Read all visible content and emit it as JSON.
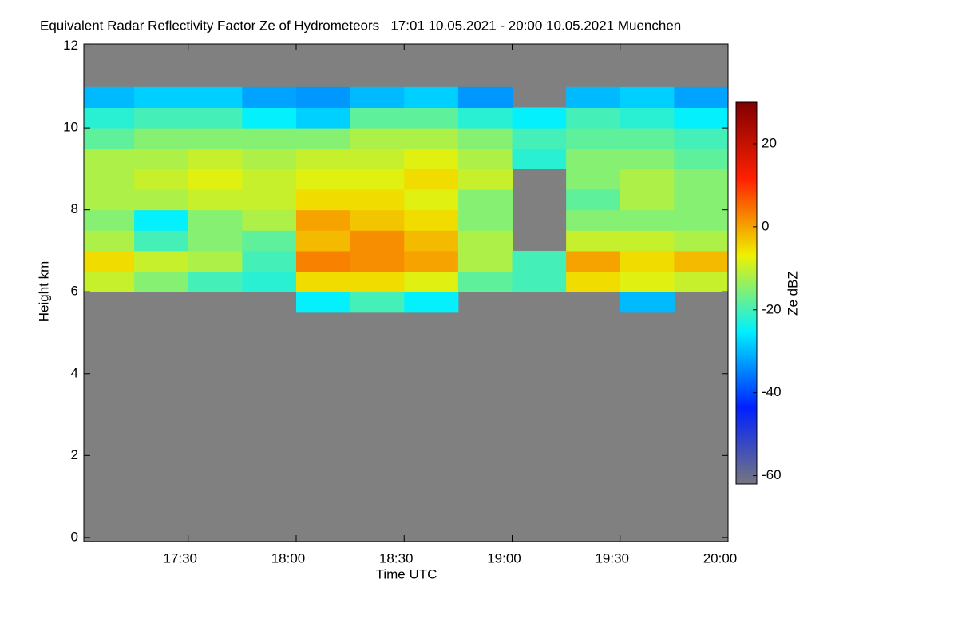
{
  "chart_data": {
    "type": "heatmap",
    "title": "Equivalent Radar Reflectivity Factor Ze of Hydrometeors   17:01 10.05.2021 - 20:00 10.05.2021 Muenchen",
    "x_label": "Time UTC",
    "y_label": "Height km",
    "colorbar_label": "Ze dBZ",
    "background": "#808080",
    "x": [
      17.125,
      17.375,
      17.625,
      17.875,
      18.125,
      18.375,
      18.625,
      18.875,
      19.125,
      19.375,
      19.625,
      19.875
    ],
    "y": [
      5.75,
      6.25,
      6.75,
      7.25,
      7.75,
      8.25,
      8.75,
      9.25,
      9.75,
      10.25,
      10.75
    ],
    "z": [
      [
        null,
        null,
        null,
        null,
        -25,
        -20,
        -25,
        null,
        null,
        null,
        -30,
        null
      ],
      [
        -10,
        -15,
        -20,
        -22,
        -5,
        -5,
        -8,
        -18,
        -20,
        -5,
        -8,
        -10
      ],
      [
        -5,
        -10,
        -12,
        -20,
        3,
        2,
        0,
        -12,
        -20,
        0,
        -5,
        -2
      ],
      [
        -12,
        -20,
        -15,
        -18,
        -2,
        2,
        -2,
        -12,
        null,
        -10,
        -10,
        -12
      ],
      [
        -15,
        -25,
        -15,
        -12,
        0,
        -3,
        -5,
        -15,
        null,
        -15,
        -15,
        -15
      ],
      [
        -12,
        -12,
        -10,
        -10,
        -5,
        -5,
        -8,
        -15,
        null,
        -18,
        -12,
        -15
      ],
      [
        -12,
        -10,
        -8,
        -10,
        -8,
        -8,
        -5,
        -10,
        null,
        -15,
        -12,
        -15
      ],
      [
        -12,
        -12,
        -10,
        -12,
        -10,
        -10,
        -8,
        -12,
        -22,
        -15,
        -15,
        -18
      ],
      [
        -18,
        -15,
        -15,
        -15,
        -15,
        -12,
        -12,
        -15,
        -20,
        -18,
        -18,
        -20
      ],
      [
        -22,
        -20,
        -20,
        -25,
        -28,
        -18,
        -18,
        -22,
        -25,
        -20,
        -22,
        -25
      ],
      [
        -30,
        -28,
        -28,
        -32,
        -33,
        -30,
        -28,
        -33,
        null,
        -30,
        -28,
        -32
      ]
    ],
    "xlim": [
      17.0167,
      20.0
    ],
    "xticks": [
      {
        "value": 17.5,
        "label": "17:30"
      },
      {
        "value": 18.0,
        "label": "18:00"
      },
      {
        "value": 18.5,
        "label": "18:30"
      },
      {
        "value": 19.0,
        "label": "19:00"
      },
      {
        "value": 19.5,
        "label": "19:30"
      },
      {
        "value": 20.0,
        "label": "20:00"
      }
    ],
    "ylim": [
      -0.1,
      12.05
    ],
    "yticks": [
      0,
      2,
      4,
      6,
      8,
      10,
      12
    ],
    "zlim": [
      -62,
      30
    ],
    "zticks": [
      -60,
      -40,
      -20,
      0,
      20
    ],
    "colormap": [
      "#767680",
      "#0020ff",
      "#00f0ff",
      "#f0f000",
      "#ff2000",
      "#800000"
    ]
  }
}
